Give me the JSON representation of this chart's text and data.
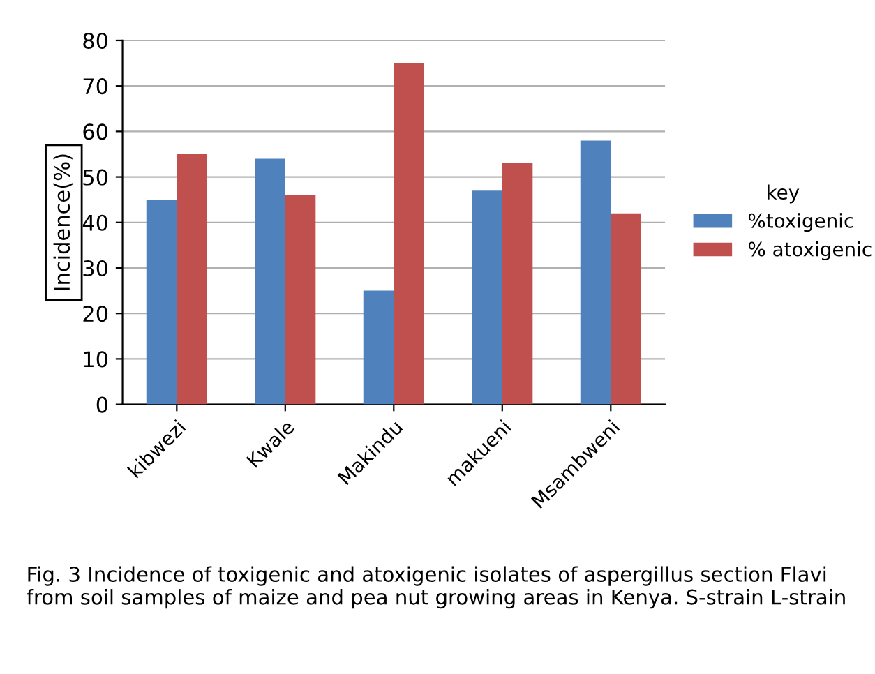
{
  "chart_data": {
    "type": "bar",
    "ylabel": "Incidence(%)",
    "legend_title": "key",
    "categories": [
      "kibwezi",
      "Kwale",
      "Makindu",
      "makueni",
      "Msambweni"
    ],
    "series": [
      {
        "name": "%toxigenic",
        "color": "#4f81bd",
        "values": [
          45,
          54,
          25,
          47,
          58
        ]
      },
      {
        "name": "% atoxigenic",
        "color": "#c0504d",
        "values": [
          55,
          46,
          75,
          53,
          42
        ]
      }
    ],
    "ylim": [
      0,
      80
    ],
    "yticks": [
      0,
      10,
      20,
      30,
      40,
      50,
      60,
      70,
      80
    ],
    "grid": "y",
    "legend": "right",
    "annotations": [
      "Fig. 3 Incidence of toxigenic and atoxigenic isolates of aspergillus section Flavi from soil samples of maize and pea nut growing areas in Kenya. S-strain L-strain"
    ]
  }
}
